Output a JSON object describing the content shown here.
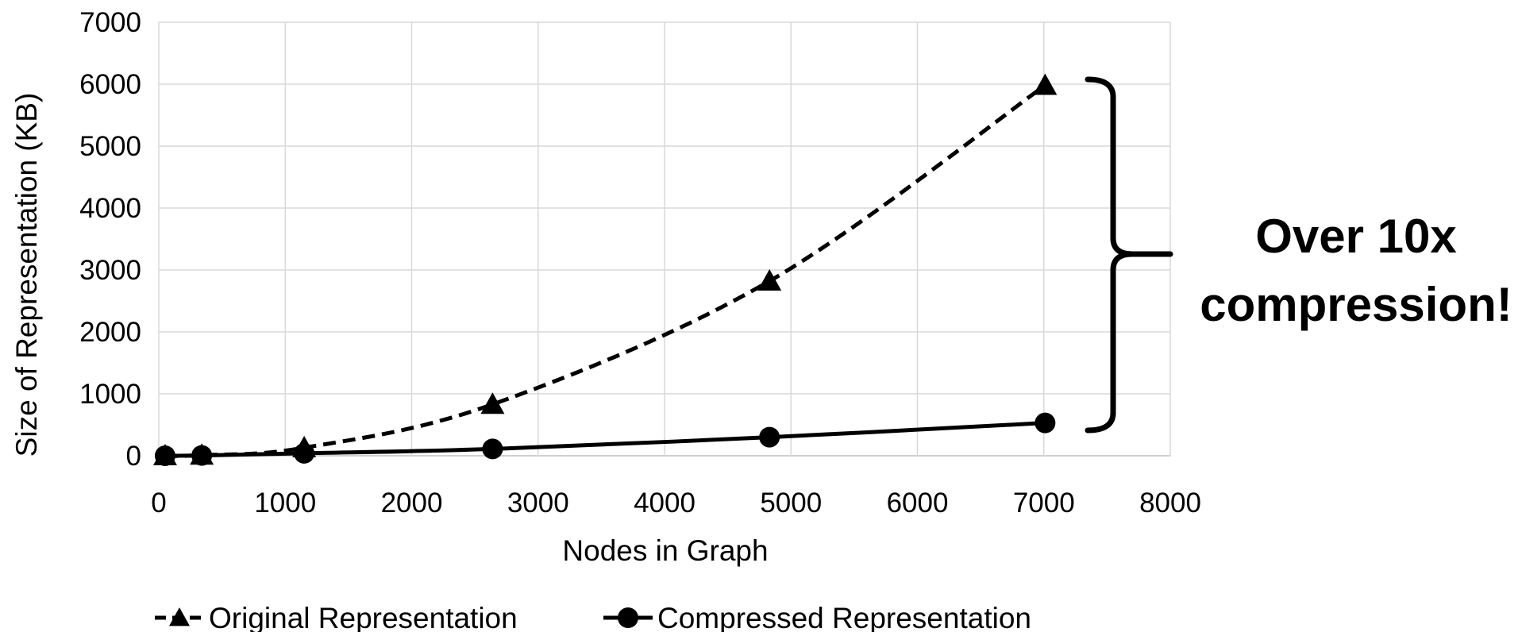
{
  "chart_data": {
    "type": "line",
    "title": "",
    "xlabel": "Nodes in Graph",
    "ylabel": "Size of Representation (KB)",
    "xlim": [
      0,
      8000
    ],
    "ylim": [
      0,
      7000
    ],
    "xticks": [
      "0",
      "1000",
      "2000",
      "3000",
      "4000",
      "5000",
      "6000",
      "7000",
      "8000"
    ],
    "yticks": [
      "0",
      "1000",
      "2000",
      "3000",
      "4000",
      "5000",
      "6000",
      "7000"
    ],
    "grid": true,
    "legend_position": "bottom",
    "series": [
      {
        "name": "Original Representation",
        "marker": "triangle",
        "line_style": "dashed",
        "color": "#000000",
        "x": [
          50,
          340,
          1150,
          2640,
          4830,
          7010
        ],
        "y": [
          0,
          10,
          130,
          830,
          2820,
          5980
        ]
      },
      {
        "name": "Compressed Representation",
        "marker": "circle",
        "line_style": "solid",
        "color": "#000000",
        "x": [
          50,
          340,
          1150,
          2640,
          4830,
          7010
        ],
        "y": [
          0,
          5,
          40,
          110,
          300,
          530
        ]
      }
    ],
    "annotation": {
      "lines": [
        "Over 10x",
        "compression!"
      ],
      "brace": true
    }
  }
}
